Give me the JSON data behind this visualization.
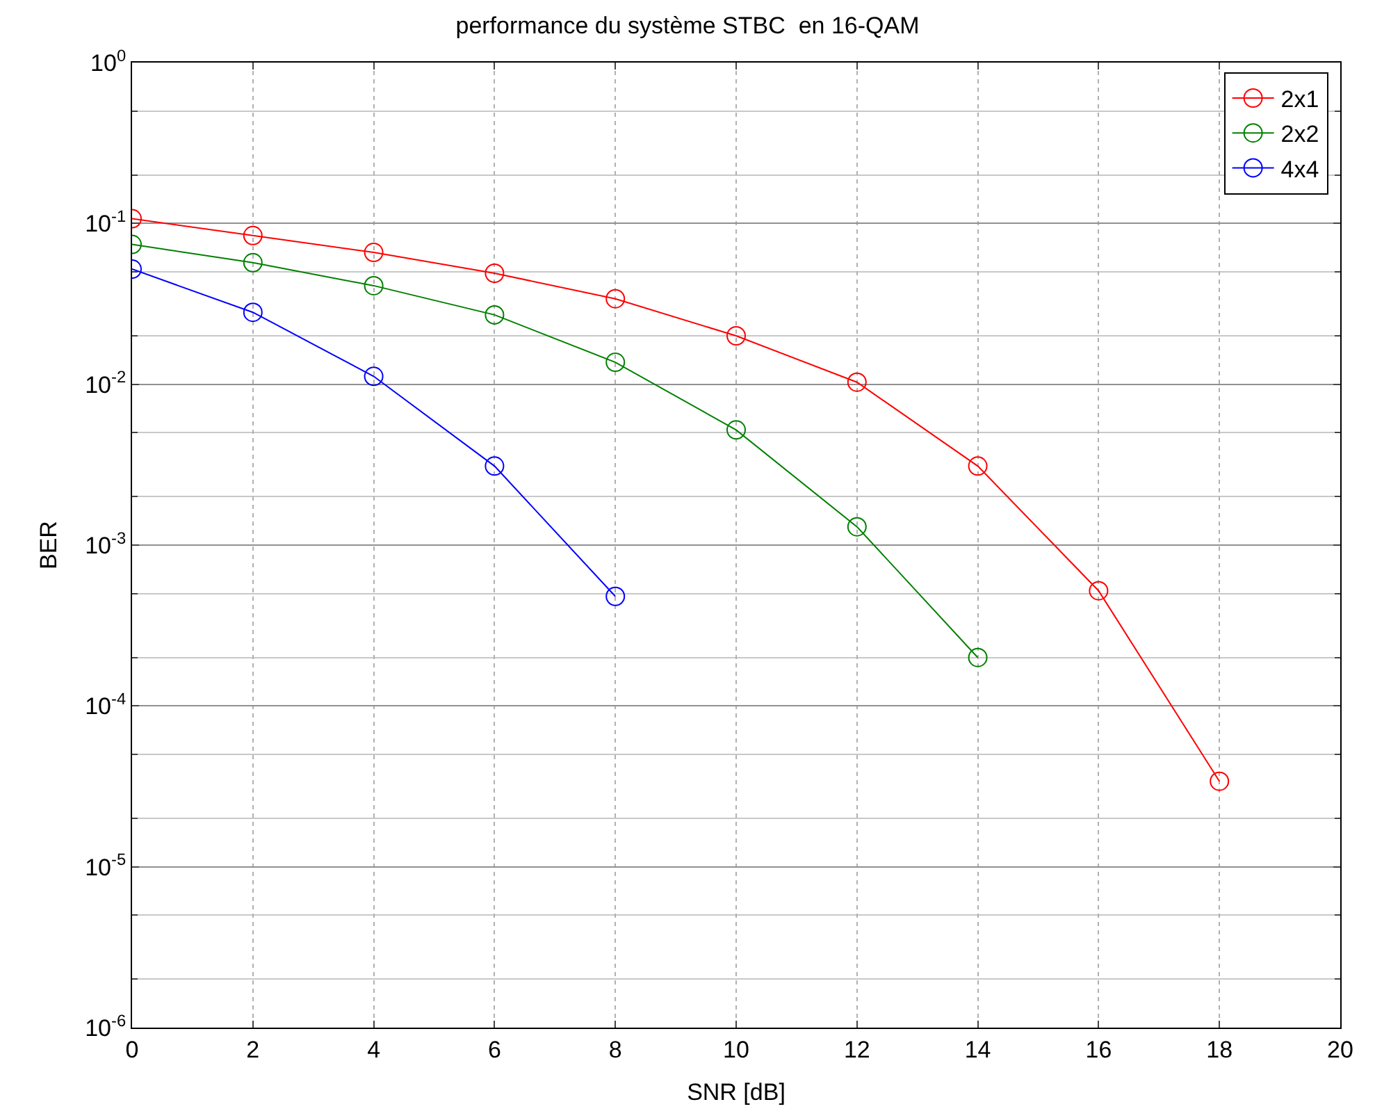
{
  "chart_data": {
    "type": "line",
    "title": "performance du système STBC  en 16-QAM",
    "xlabel": "SNR [dB]",
    "ylabel": "BER",
    "x": [
      0,
      2,
      4,
      6,
      8,
      10,
      12,
      14,
      16,
      18
    ],
    "series": [
      {
        "name": "2x1",
        "color": "#ff0000",
        "values": [
          0.107,
          0.084,
          0.066,
          0.049,
          0.034,
          0.02,
          0.0103,
          0.0031,
          0.00052,
          3.4e-05
        ]
      },
      {
        "name": "2x2",
        "color": "#008000",
        "values": [
          0.074,
          0.057,
          0.041,
          0.027,
          0.0137,
          0.0052,
          0.0013,
          0.0002,
          null,
          null
        ]
      },
      {
        "name": "4x4",
        "color": "#0000ff",
        "values": [
          0.052,
          0.028,
          0.0112,
          0.0031,
          0.00048,
          null,
          null,
          null,
          null,
          null
        ]
      }
    ],
    "log": "y",
    "xlim": [
      0,
      20
    ],
    "xticks": [
      0,
      2,
      4,
      6,
      8,
      10,
      12,
      14,
      16,
      18,
      20
    ],
    "ylim": [
      1e-06,
      1
    ],
    "yticks": [
      {
        "value": 1e-06,
        "label": "10$^{-6}$"
      },
      {
        "value": 1e-05,
        "label": "10$^{-5}$"
      },
      {
        "value": 0.0001,
        "label": "10$^{-4}$"
      },
      {
        "value": 0.001,
        "label": "10$^{-3}$"
      },
      {
        "value": 0.01,
        "label": "10$^{-2}$"
      },
      {
        "value": 0.1,
        "label": "10$^{-1}$"
      },
      {
        "value": 1,
        "label": "10$^{0}$"
      }
    ],
    "grid": true,
    "legend": "top right",
    "marker": "circle",
    "line_style": "solid"
  }
}
